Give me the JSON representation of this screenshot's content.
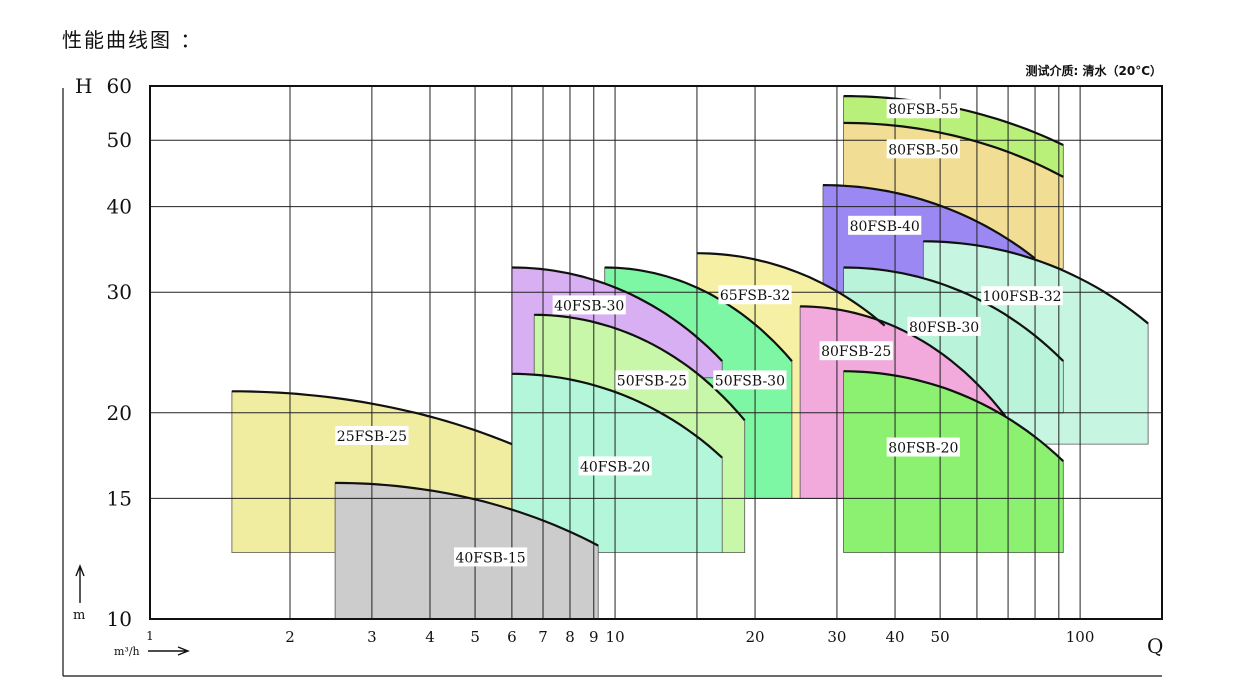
{
  "page_title": "性能曲线图 ：",
  "test_medium": "测试介质: 清水（20°C）",
  "chart_data": {
    "type": "area",
    "x_scale": "log",
    "y_scale": "log",
    "xlabel": "Q",
    "x_unit": "m³/h",
    "ylabel": "H",
    "y_unit": "m",
    "xlim": [
      1,
      150
    ],
    "ylim": [
      10,
      60
    ],
    "x_ticks": [
      1,
      2,
      3,
      4,
      5,
      6,
      7,
      8,
      9,
      10,
      20,
      30,
      40,
      50,
      100
    ],
    "x_gridlines": [
      2,
      3,
      4,
      5,
      6,
      7,
      8,
      9,
      10,
      15,
      20,
      30,
      40,
      50,
      60,
      70,
      80,
      90,
      100
    ],
    "y_ticks": [
      10,
      15,
      20,
      30,
      40,
      50,
      60
    ],
    "grid": true,
    "series": [
      {
        "name": "80FSB-55",
        "color": "#b9f07a",
        "q": [
          31,
          92
        ],
        "h_top": [
          58,
          49.2
        ],
        "h_bottom": [
          53,
          44.2
        ],
        "label_at": [
          46,
          55.5
        ]
      },
      {
        "name": "80FSB-50",
        "color": "#f1dd94",
        "q": [
          31,
          92
        ],
        "h_top": [
          53,
          44.2
        ],
        "h_bottom": [
          30,
          32.5
        ],
        "label_at": [
          46,
          48.5
        ]
      },
      {
        "name": "80FSB-40",
        "color": "#9b88f2",
        "q": [
          28,
          80
        ],
        "h_top": [
          43,
          33.6
        ],
        "h_bottom": [
          30,
          30
        ],
        "label_at": [
          38,
          37.5
        ]
      },
      {
        "name": "100FSB-32",
        "color": "#c6f6e2",
        "q": [
          46,
          140
        ],
        "h_top": [
          35.6,
          27
        ],
        "h_bottom": [
          18,
          18
        ],
        "label_at": [
          75,
          29.6
        ]
      },
      {
        "name": "80FSB-30",
        "color": "#b8f3da",
        "q": [
          31,
          92
        ],
        "h_top": [
          32.6,
          23.8
        ],
        "h_bottom": [
          20,
          20
        ],
        "label_at": [
          51,
          26.7
        ]
      },
      {
        "name": "65FSB-32",
        "color": "#f5f0a4",
        "q": [
          15,
          38
        ],
        "h_top": [
          34.2,
          26.8
        ],
        "h_bottom": [
          15,
          15
        ],
        "label_at": [
          20,
          29.7
        ]
      },
      {
        "name": "80FSB-25",
        "color": "#f2a9db",
        "q": [
          25,
          69
        ],
        "h_top": [
          28.6,
          19.8
        ],
        "h_bottom": [
          15,
          15
        ],
        "label_at": [
          33,
          24.6
        ]
      },
      {
        "name": "80FSB-20",
        "color": "#8cf070",
        "q": [
          31,
          92
        ],
        "h_top": [
          23,
          17
        ],
        "h_bottom": [
          12.5,
          12.5
        ],
        "label_at": [
          46,
          17.8
        ]
      },
      {
        "name": "50FSB-30",
        "color": "#7ef7a4",
        "q": [
          9.5,
          24
        ],
        "h_top": [
          32.6,
          23.8
        ],
        "h_bottom": [
          15,
          15
        ],
        "label_at": [
          19.5,
          22.3
        ]
      },
      {
        "name": "40FSB-30",
        "color": "#d8aff2",
        "q": [
          6,
          17
        ],
        "h_top": [
          32.6,
          23.8
        ],
        "h_bottom": [
          22.5,
          22.5
        ],
        "label_at": [
          8.8,
          28.7
        ]
      },
      {
        "name": "50FSB-25",
        "color": "#c9f7a9",
        "q": [
          6.7,
          19
        ],
        "h_top": [
          27.8,
          19.5
        ],
        "h_bottom": [
          12.5,
          12.5
        ],
        "label_at": [
          12,
          22.3
        ]
      },
      {
        "name": "40FSB-20",
        "color": "#b3f6d9",
        "q": [
          6,
          17
        ],
        "h_top": [
          22.8,
          17.2
        ],
        "h_bottom": [
          12.5,
          12.5
        ],
        "label_at": [
          10,
          16.7
        ]
      },
      {
        "name": "25FSB-25",
        "color": "#f0eca0",
        "q": [
          1.5,
          6
        ],
        "h_top": [
          21.5,
          18
        ],
        "h_bottom": [
          12.5,
          12.5
        ],
        "label_at": [
          3,
          18.5
        ]
      },
      {
        "name": "40FSB-15",
        "color": "#cccccc",
        "q": [
          2.5,
          9.2
        ],
        "h_top": [
          15.8,
          12.8
        ],
        "h_bottom": [
          10,
          10
        ],
        "label_at": [
          5.4,
          12.3
        ]
      }
    ]
  }
}
